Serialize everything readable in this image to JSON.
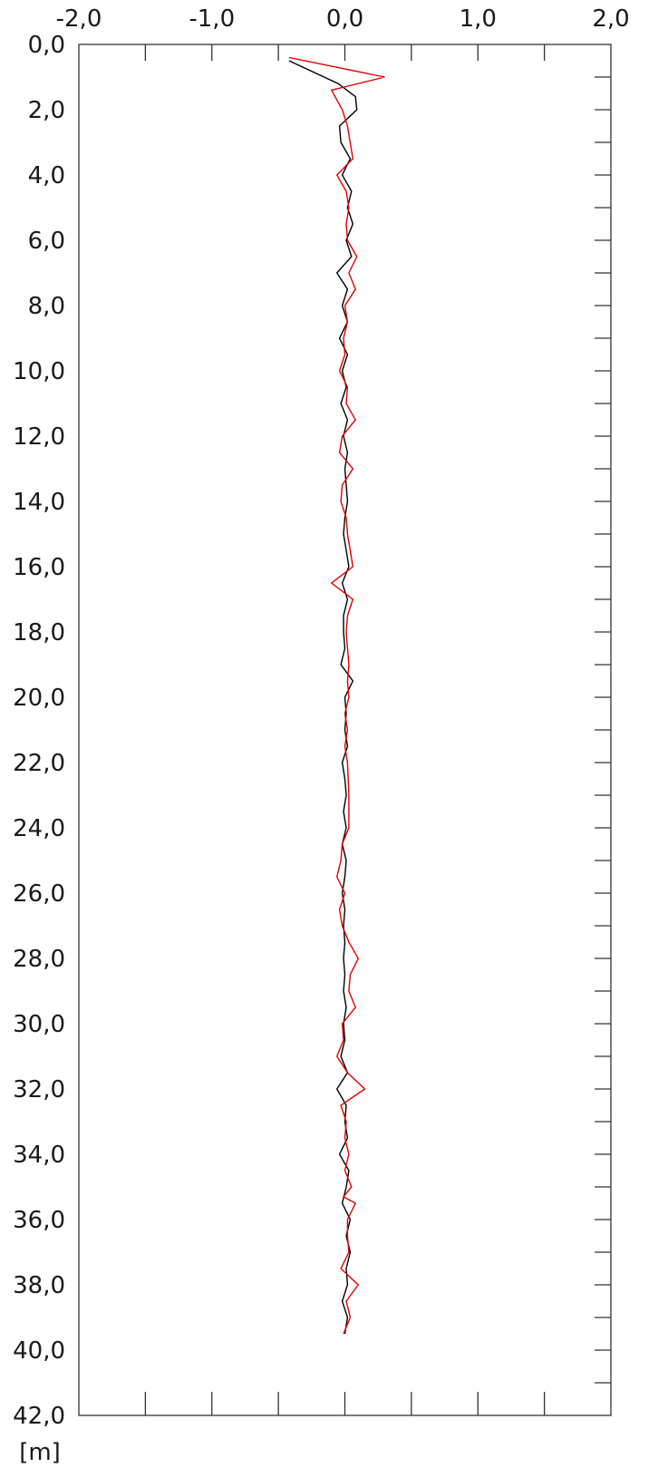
{
  "chart_data": {
    "type": "line",
    "orientation": "vertical-profile",
    "title": "",
    "xlabel": "",
    "ylabel": "[m]",
    "xlim": [
      -2.0,
      2.0
    ],
    "ylim": [
      0.0,
      42.0
    ],
    "y_inverted": true,
    "x_ticks": [
      -2.0,
      -1.0,
      0.0,
      1.0,
      2.0
    ],
    "x_tick_labels": [
      "-2,0",
      "-1,0",
      "0,0",
      "1,0",
      "2,0"
    ],
    "x_minor_ticks": [
      -1.5,
      -0.5,
      0.5,
      1.5
    ],
    "y_ticks": [
      0,
      2,
      4,
      6,
      8,
      10,
      12,
      14,
      16,
      18,
      20,
      22,
      24,
      26,
      28,
      30,
      32,
      34,
      36,
      38,
      40,
      42
    ],
    "y_tick_labels": [
      "0,0",
      "2,0",
      "4,0",
      "6,0",
      "8,0",
      "10,0",
      "12,0",
      "14,0",
      "16,0",
      "18,0",
      "20,0",
      "22,0",
      "24,0",
      "26,0",
      "28,0",
      "30,0",
      "32,0",
      "34,0",
      "36,0",
      "38,0",
      "40,0",
      "42,0"
    ],
    "y_minor_ticks": [
      1,
      3,
      5,
      7,
      9,
      11,
      13,
      15,
      17,
      19,
      21,
      23,
      25,
      27,
      29,
      31,
      33,
      35,
      37,
      39,
      41
    ],
    "grid": false,
    "legend": "none",
    "series": [
      {
        "color": "#000000",
        "points": [
          [
            -0.42,
            0.5
          ],
          [
            -0.05,
            1.2
          ],
          [
            0.08,
            1.6
          ],
          [
            0.09,
            2.0
          ],
          [
            -0.04,
            2.5
          ],
          [
            -0.03,
            3.0
          ],
          [
            0.04,
            3.5
          ],
          [
            -0.02,
            4.0
          ],
          [
            0.05,
            4.5
          ],
          [
            0.02,
            5.0
          ],
          [
            0.06,
            5.5
          ],
          [
            0.01,
            6.0
          ],
          [
            0.05,
            6.5
          ],
          [
            -0.06,
            7.0
          ],
          [
            0.02,
            7.5
          ],
          [
            -0.02,
            8.0
          ],
          [
            0.02,
            8.5
          ],
          [
            -0.04,
            9.0
          ],
          [
            0.02,
            9.5
          ],
          [
            -0.02,
            10.0
          ],
          [
            0.01,
            10.5
          ],
          [
            -0.03,
            11.0
          ],
          [
            0.02,
            11.5
          ],
          [
            -0.01,
            12.0
          ],
          [
            0.02,
            12.5
          ],
          [
            0.0,
            13.0
          ],
          [
            0.01,
            13.5
          ],
          [
            0.02,
            14.0
          ],
          [
            0.0,
            14.5
          ],
          [
            -0.01,
            15.0
          ],
          [
            0.01,
            15.5
          ],
          [
            0.03,
            16.0
          ],
          [
            -0.02,
            16.5
          ],
          [
            0.02,
            17.0
          ],
          [
            -0.01,
            17.5
          ],
          [
            -0.01,
            18.0
          ],
          [
            0.0,
            18.5
          ],
          [
            -0.03,
            19.0
          ],
          [
            0.06,
            19.5
          ],
          [
            0.0,
            20.0
          ],
          [
            0.01,
            20.5
          ],
          [
            0.0,
            21.0
          ],
          [
            0.02,
            21.5
          ],
          [
            -0.02,
            22.0
          ],
          [
            0.0,
            22.5
          ],
          [
            0.01,
            23.0
          ],
          [
            -0.01,
            23.5
          ],
          [
            0.01,
            24.0
          ],
          [
            -0.02,
            24.5
          ],
          [
            0.01,
            25.0
          ],
          [
            0.0,
            25.5
          ],
          [
            -0.02,
            26.0
          ],
          [
            0.0,
            26.5
          ],
          [
            -0.01,
            27.0
          ],
          [
            0.0,
            27.5
          ],
          [
            -0.01,
            28.0
          ],
          [
            0.0,
            28.5
          ],
          [
            -0.01,
            29.0
          ],
          [
            0.01,
            29.5
          ],
          [
            -0.01,
            30.0
          ],
          [
            0.0,
            30.5
          ],
          [
            -0.03,
            31.0
          ],
          [
            0.02,
            31.5
          ],
          [
            -0.06,
            32.0
          ],
          [
            0.01,
            32.5
          ],
          [
            0.0,
            33.0
          ],
          [
            0.02,
            33.5
          ],
          [
            -0.04,
            34.0
          ],
          [
            0.03,
            34.5
          ],
          [
            0.01,
            35.0
          ],
          [
            -0.02,
            35.5
          ],
          [
            0.04,
            36.0
          ],
          [
            0.01,
            36.5
          ],
          [
            0.04,
            37.0
          ],
          [
            0.01,
            37.5
          ],
          [
            0.02,
            38.0
          ],
          [
            -0.02,
            38.5
          ],
          [
            0.02,
            39.0
          ],
          [
            0.0,
            39.5
          ]
        ]
      },
      {
        "color": "#e00000",
        "points": [
          [
            -0.42,
            0.4
          ],
          [
            0.3,
            1.0
          ],
          [
            -0.1,
            1.4
          ],
          [
            -0.02,
            2.0
          ],
          [
            0.02,
            2.5
          ],
          [
            0.06,
            3.5
          ],
          [
            -0.06,
            4.0
          ],
          [
            0.01,
            4.5
          ],
          [
            0.03,
            5.0
          ],
          [
            0.01,
            5.5
          ],
          [
            0.02,
            6.0
          ],
          [
            0.09,
            6.5
          ],
          [
            0.03,
            7.0
          ],
          [
            0.08,
            7.5
          ],
          [
            0.0,
            8.0
          ],
          [
            0.02,
            8.5
          ],
          [
            -0.01,
            9.0
          ],
          [
            0.0,
            9.5
          ],
          [
            -0.04,
            10.0
          ],
          [
            0.02,
            10.5
          ],
          [
            0.01,
            11.0
          ],
          [
            0.08,
            11.5
          ],
          [
            -0.02,
            12.0
          ],
          [
            -0.04,
            12.5
          ],
          [
            0.06,
            13.0
          ],
          [
            -0.02,
            13.5
          ],
          [
            -0.03,
            14.0
          ],
          [
            0.01,
            14.5
          ],
          [
            0.02,
            15.0
          ],
          [
            0.04,
            15.5
          ],
          [
            0.06,
            16.0
          ],
          [
            -0.1,
            16.5
          ],
          [
            0.06,
            17.0
          ],
          [
            0.02,
            17.5
          ],
          [
            0.01,
            18.0
          ],
          [
            0.02,
            18.5
          ],
          [
            0.03,
            19.0
          ],
          [
            0.02,
            19.5
          ],
          [
            0.03,
            20.0
          ],
          [
            0.0,
            20.5
          ],
          [
            0.02,
            21.0
          ],
          [
            0.0,
            21.5
          ],
          [
            0.02,
            22.0
          ],
          [
            0.03,
            23.0
          ],
          [
            0.03,
            24.0
          ],
          [
            -0.02,
            24.5
          ],
          [
            -0.03,
            25.0
          ],
          [
            -0.06,
            25.5
          ],
          [
            0.0,
            26.0
          ],
          [
            -0.04,
            26.5
          ],
          [
            -0.02,
            27.0
          ],
          [
            0.03,
            27.5
          ],
          [
            0.1,
            28.0
          ],
          [
            0.04,
            28.5
          ],
          [
            0.03,
            29.0
          ],
          [
            0.08,
            29.5
          ],
          [
            -0.02,
            30.0
          ],
          [
            -0.01,
            30.5
          ],
          [
            -0.06,
            31.0
          ],
          [
            0.02,
            31.5
          ],
          [
            0.15,
            32.0
          ],
          [
            -0.03,
            32.5
          ],
          [
            0.01,
            33.0
          ],
          [
            0.0,
            33.5
          ],
          [
            0.03,
            34.0
          ],
          [
            0.0,
            34.5
          ],
          [
            0.05,
            35.0
          ],
          [
            -0.01,
            35.3
          ],
          [
            0.08,
            35.5
          ],
          [
            0.02,
            36.0
          ],
          [
            0.02,
            36.5
          ],
          [
            0.03,
            37.0
          ],
          [
            -0.03,
            37.5
          ],
          [
            0.1,
            38.0
          ],
          [
            0.01,
            38.5
          ],
          [
            0.04,
            39.0
          ],
          [
            -0.01,
            39.5
          ]
        ]
      }
    ]
  }
}
